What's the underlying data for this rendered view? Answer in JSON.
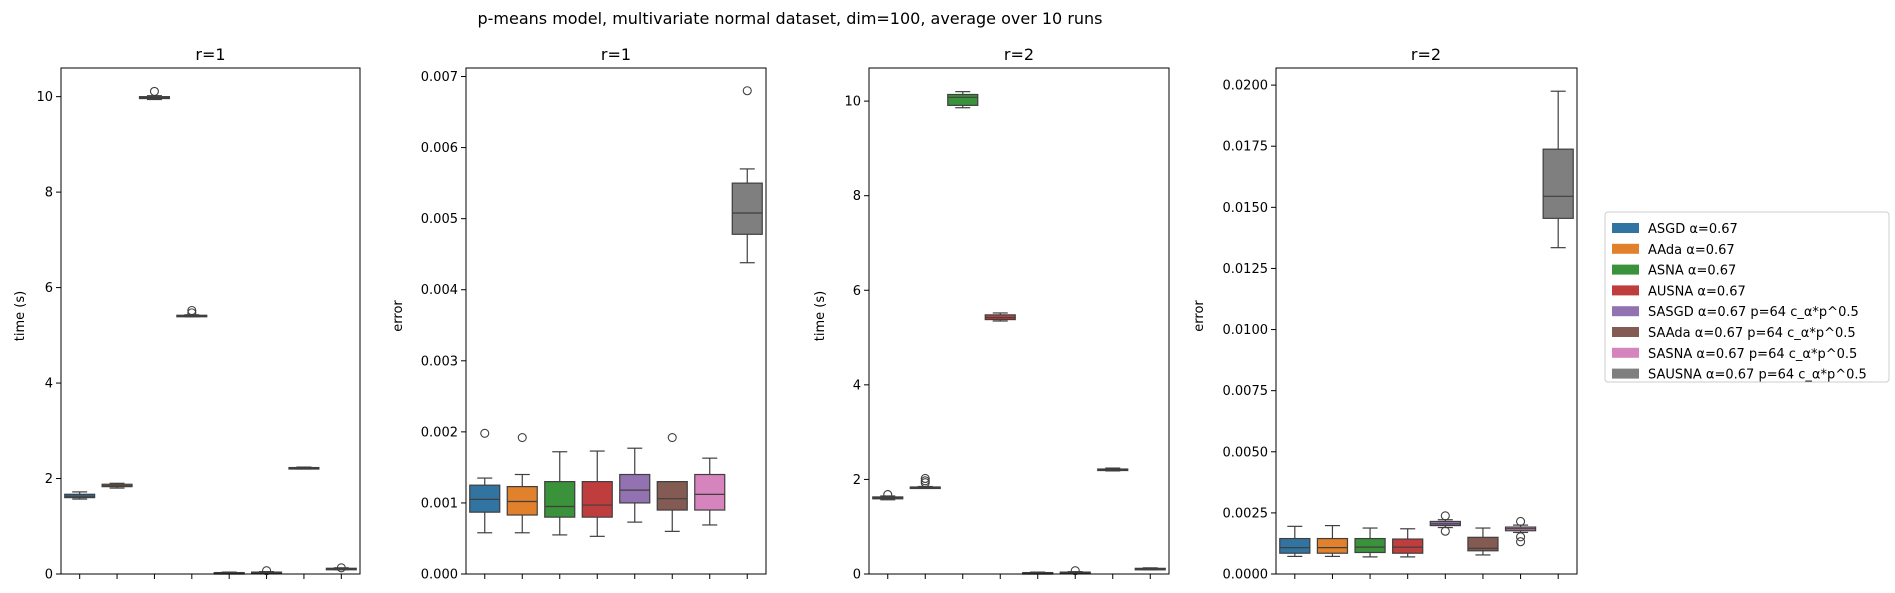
{
  "figure": {
    "suptitle": "p-means model, multivariate normal dataset, dim=100, average over 10 runs"
  },
  "legend": {
    "position": "right",
    "entries": [
      {
        "label": "ASGD α=0.67",
        "color": "#3274a1"
      },
      {
        "label": "AAda α=0.67",
        "color": "#e1812c"
      },
      {
        "label": "ASNA α=0.67",
        "color": "#3a923a"
      },
      {
        "label": "AUSNA α=0.67",
        "color": "#c03d3e"
      },
      {
        "label": "SASGD α=0.67 p=64 c_α*p^0.5",
        "color": "#9372b2"
      },
      {
        "label": "SAAda α=0.67 p=64 c_α*p^0.5",
        "color": "#845b53"
      },
      {
        "label": "SASNA α=0.67 p=64 c_α*p^0.5",
        "color": "#d684bd"
      },
      {
        "label": "SAUSNA α=0.67 p=64 c_α*p^0.5",
        "color": "#7f7f7f"
      }
    ]
  },
  "chart_data": [
    {
      "type": "box",
      "title": "r=1",
      "xlabel": "",
      "ylabel": "time (s)",
      "ylim": [
        0,
        10.6
      ],
      "yticks": [
        0,
        2,
        4,
        6,
        8,
        10
      ],
      "yticklabels": [
        "0",
        "2",
        "4",
        "6",
        "8",
        "10"
      ],
      "boxes": [
        {
          "color": "#3274a1",
          "whislo": 1.57,
          "q1": 1.6,
          "med": 1.63,
          "q3": 1.67,
          "whishi": 1.72,
          "fliers": []
        },
        {
          "color": "#e1812c",
          "whislo": 1.8,
          "q1": 1.83,
          "med": 1.85,
          "q3": 1.88,
          "whishi": 1.9,
          "fliers": []
        },
        {
          "color": "#3a923a",
          "whislo": 9.94,
          "q1": 9.96,
          "med": 9.98,
          "q3": 10.0,
          "whishi": 10.02,
          "fliers": [
            10.11
          ]
        },
        {
          "color": "#c03d3e",
          "whislo": 5.39,
          "q1": 5.4,
          "med": 5.41,
          "q3": 5.42,
          "whishi": 5.43,
          "fliers": [
            5.47,
            5.52
          ]
        },
        {
          "color": "#9372b2",
          "whislo": 0.01,
          "q1": 0.02,
          "med": 0.025,
          "q3": 0.03,
          "whishi": 0.04,
          "fliers": []
        },
        {
          "color": "#845b53",
          "whislo": 0.02,
          "q1": 0.03,
          "med": 0.035,
          "q3": 0.04,
          "whishi": 0.05,
          "fliers": [
            0.07
          ]
        },
        {
          "color": "#d684bd",
          "whislo": 2.2,
          "q1": 2.21,
          "med": 2.22,
          "q3": 2.23,
          "whishi": 2.24,
          "fliers": []
        },
        {
          "color": "#7f7f7f",
          "whislo": 0.09,
          "q1": 0.1,
          "med": 0.11,
          "q3": 0.12,
          "whishi": 0.13,
          "fliers": [
            0.13
          ]
        }
      ]
    },
    {
      "type": "box",
      "title": "r=1",
      "xlabel": "",
      "ylabel": "error",
      "ylim": [
        0,
        0.00712
      ],
      "yticks": [
        0,
        0.001,
        0.002,
        0.003,
        0.004,
        0.005,
        0.006,
        0.007
      ],
      "yticklabels": [
        "0.000",
        "0.001",
        "0.002",
        "0.003",
        "0.004",
        "0.005",
        "0.006",
        "0.007"
      ],
      "boxes": [
        {
          "color": "#3274a1",
          "whislo": 0.00058,
          "q1": 0.00087,
          "med": 0.00105,
          "q3": 0.00125,
          "whishi": 0.00135,
          "fliers": [
            0.00198
          ]
        },
        {
          "color": "#e1812c",
          "whislo": 0.00058,
          "q1": 0.00083,
          "med": 0.00102,
          "q3": 0.00123,
          "whishi": 0.0014,
          "fliers": [
            0.00192
          ]
        },
        {
          "color": "#3a923a",
          "whislo": 0.00055,
          "q1": 0.0008,
          "med": 0.00095,
          "q3": 0.0013,
          "whishi": 0.00172,
          "fliers": []
        },
        {
          "color": "#c03d3e",
          "whislo": 0.00053,
          "q1": 0.0008,
          "med": 0.00097,
          "q3": 0.0013,
          "whishi": 0.00173,
          "fliers": []
        },
        {
          "color": "#9372b2",
          "whislo": 0.00073,
          "q1": 0.001,
          "med": 0.00118,
          "q3": 0.0014,
          "whishi": 0.00177,
          "fliers": []
        },
        {
          "color": "#845b53",
          "whislo": 0.0006,
          "q1": 0.0009,
          "med": 0.00106,
          "q3": 0.0013,
          "whishi": 0.0013,
          "fliers": [
            0.00192
          ]
        },
        {
          "color": "#d684bd",
          "whislo": 0.00069,
          "q1": 0.0009,
          "med": 0.00112,
          "q3": 0.0014,
          "whishi": 0.00163,
          "fliers": []
        },
        {
          "color": "#7f7f7f",
          "whislo": 0.00438,
          "q1": 0.00478,
          "med": 0.00508,
          "q3": 0.0055,
          "whishi": 0.0057,
          "fliers": [
            0.0068
          ]
        }
      ]
    },
    {
      "type": "box",
      "title": "r=2",
      "xlabel": "",
      "ylabel": "time (s)",
      "ylim": [
        0,
        10.7
      ],
      "yticks": [
        0,
        2,
        4,
        6,
        8,
        10
      ],
      "yticklabels": [
        "0",
        "2",
        "4",
        "6",
        "8",
        "10"
      ],
      "boxes": [
        {
          "color": "#3274a1",
          "whislo": 1.57,
          "q1": 1.59,
          "med": 1.61,
          "q3": 1.63,
          "whishi": 1.65,
          "fliers": [
            1.68
          ]
        },
        {
          "color": "#e1812c",
          "whislo": 1.81,
          "q1": 1.82,
          "med": 1.83,
          "q3": 1.84,
          "whishi": 1.85,
          "fliers": [
            1.93,
            1.97,
            2.02
          ]
        },
        {
          "color": "#3a923a",
          "whislo": 9.86,
          "q1": 9.91,
          "med": 10.08,
          "q3": 10.14,
          "whishi": 10.2,
          "fliers": []
        },
        {
          "color": "#c03d3e",
          "whislo": 5.35,
          "q1": 5.38,
          "med": 5.42,
          "q3": 5.48,
          "whishi": 5.52,
          "fliers": []
        },
        {
          "color": "#9372b2",
          "whislo": 0.01,
          "q1": 0.02,
          "med": 0.025,
          "q3": 0.03,
          "whishi": 0.04,
          "fliers": []
        },
        {
          "color": "#845b53",
          "whislo": 0.02,
          "q1": 0.03,
          "med": 0.035,
          "q3": 0.04,
          "whishi": 0.05,
          "fliers": [
            0.07
          ]
        },
        {
          "color": "#d684bd",
          "whislo": 2.18,
          "q1": 2.19,
          "med": 2.2,
          "q3": 2.22,
          "whishi": 2.24,
          "fliers": []
        },
        {
          "color": "#7f7f7f",
          "whislo": 0.09,
          "q1": 0.1,
          "med": 0.11,
          "q3": 0.12,
          "whishi": 0.13,
          "fliers": []
        }
      ]
    },
    {
      "type": "box",
      "title": "r=2",
      "xlabel": "",
      "ylabel": "error",
      "ylim": [
        0,
        0.0207
      ],
      "yticks": [
        0,
        0.0025,
        0.005,
        0.0075,
        0.01,
        0.0125,
        0.015,
        0.0175,
        0.02
      ],
      "yticklabels": [
        "0.0000",
        "0.0025",
        "0.0050",
        "0.0075",
        "0.0100",
        "0.0125",
        "0.0150",
        "0.0175",
        "0.0200"
      ],
      "boxes": [
        {
          "color": "#3274a1",
          "whislo": 0.00072,
          "q1": 0.00085,
          "med": 0.00108,
          "q3": 0.00145,
          "whishi": 0.00195,
          "fliers": []
        },
        {
          "color": "#e1812c",
          "whislo": 0.00072,
          "q1": 0.00085,
          "med": 0.00108,
          "q3": 0.00145,
          "whishi": 0.00198,
          "fliers": []
        },
        {
          "color": "#3a923a",
          "whislo": 0.0007,
          "q1": 0.00088,
          "med": 0.0011,
          "q3": 0.00145,
          "whishi": 0.00188,
          "fliers": []
        },
        {
          "color": "#c03d3e",
          "whislo": 0.0007,
          "q1": 0.00085,
          "med": 0.0011,
          "q3": 0.00143,
          "whishi": 0.00185,
          "fliers": []
        },
        {
          "color": "#9372b2",
          "whislo": 0.0019,
          "q1": 0.00198,
          "med": 0.00205,
          "q3": 0.00215,
          "whishi": 0.00222,
          "fliers": [
            0.00175,
            0.00238
          ]
        },
        {
          "color": "#845b53",
          "whislo": 0.00078,
          "q1": 0.00095,
          "med": 0.00105,
          "q3": 0.0015,
          "whishi": 0.00188,
          "fliers": []
        },
        {
          "color": "#d684bd",
          "whislo": 0.0017,
          "q1": 0.00177,
          "med": 0.00185,
          "q3": 0.00192,
          "whishi": 0.002,
          "fliers": [
            0.00132,
            0.00152,
            0.00215
          ]
        },
        {
          "color": "#7f7f7f",
          "whislo": 0.01335,
          "q1": 0.01455,
          "med": 0.01545,
          "q3": 0.01738,
          "whishi": 0.01975,
          "fliers": []
        }
      ]
    }
  ]
}
